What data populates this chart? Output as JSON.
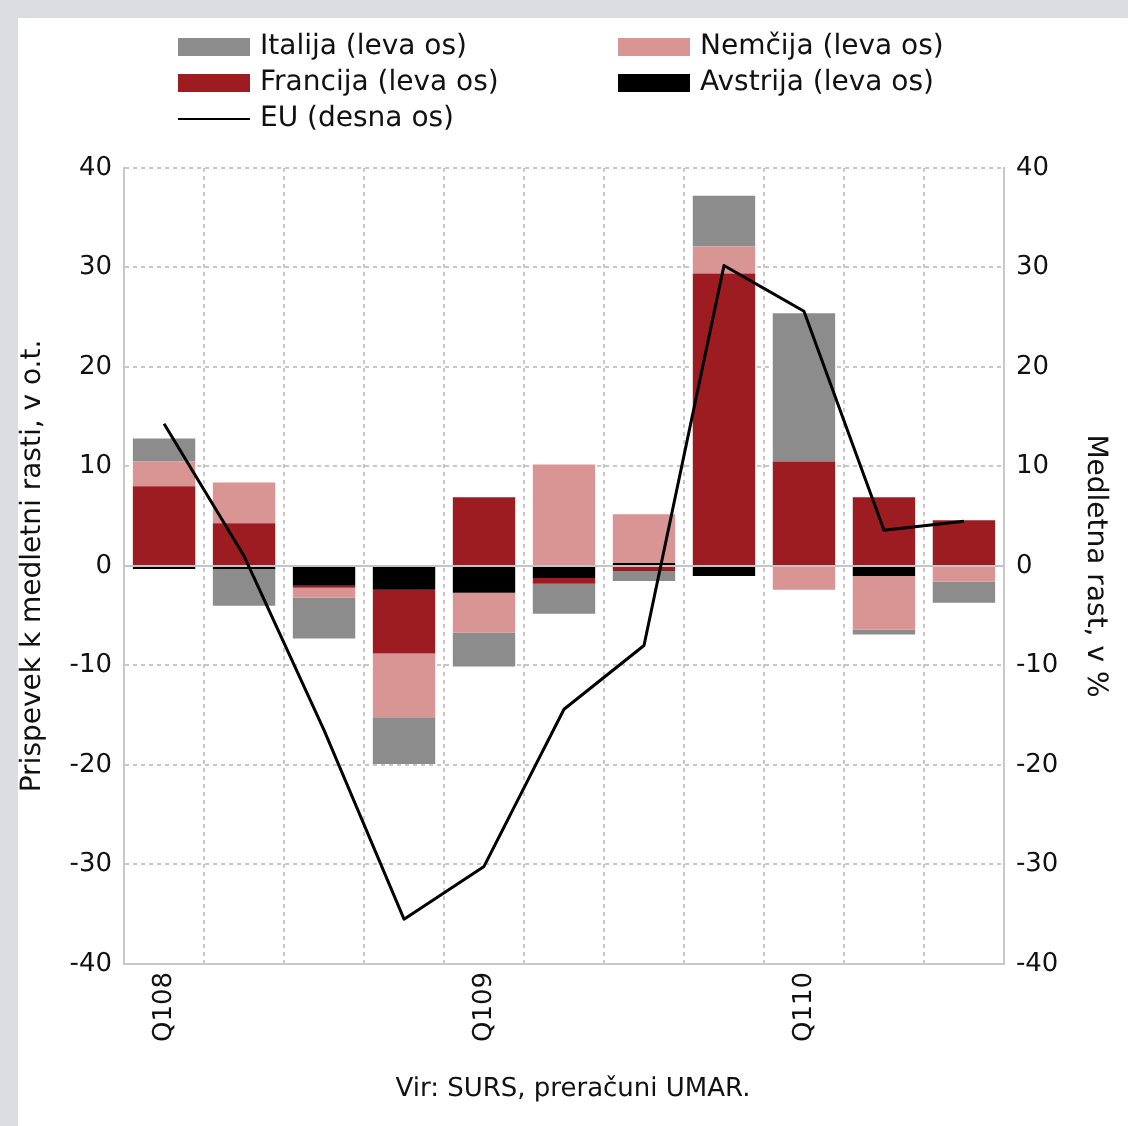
{
  "chart_data": {
    "type": "bar",
    "stacked": true,
    "ylabel": "Prispevek k medletni rasti, v o.t.",
    "y2label": "Medletna rast, v %",
    "categories": [
      "Q108",
      null,
      null,
      null,
      "Q109",
      null,
      null,
      null,
      "Q110",
      null,
      null
    ],
    "series": [
      {
        "name": "Avstrija (leva os)",
        "color": "#000000",
        "values": [
          -0.3,
          -0.3,
          -2.0,
          -2.4,
          -2.7,
          -1.2,
          0.3,
          -1.0,
          null,
          -1.0,
          0
        ]
      },
      {
        "name": "Francija (leva os)",
        "color": "#9c1c22",
        "values": [
          8.0,
          4.3,
          -0.2,
          -6.4,
          6.9,
          -0.6,
          -0.5,
          29.4,
          10.5,
          6.9,
          4.6
        ]
      },
      {
        "name": "Nemčija (leva os)",
        "color": "#d99494",
        "values": [
          2.5,
          4.1,
          -1.0,
          -6.4,
          -4.0,
          10.2,
          4.9,
          2.7,
          -2.4,
          -5.4,
          -1.6
        ]
      },
      {
        "name": "Italija (leva os)",
        "color": "#8c8c8c",
        "values": [
          2.3,
          -3.7,
          -4.1,
          -4.7,
          -3.4,
          -3.0,
          -1.0,
          5.1,
          14.9,
          -0.5,
          -2.1
        ]
      },
      {
        "name": "EU (desna os)",
        "type": "line",
        "axis": "y2",
        "color": "#000000",
        "marker": "none",
        "values": [
          14.3,
          1.0,
          -16.5,
          -35.5,
          -30.2,
          -14.4,
          -8.0,
          30.2,
          25.6,
          3.6,
          4.5
        ]
      }
    ],
    "ylim": [
      -40,
      40
    ],
    "yticks": [
      -40,
      -30,
      -20,
      -10,
      0,
      10,
      20,
      30,
      40
    ],
    "y2lim": [
      -40,
      40
    ],
    "y2ticks": [
      -40,
      -30,
      -20,
      -10,
      0,
      10,
      20,
      30,
      40
    ],
    "grid": true,
    "legend": "top",
    "annotations": [
      "Vir: SURS, preračuni UMAR."
    ]
  }
}
